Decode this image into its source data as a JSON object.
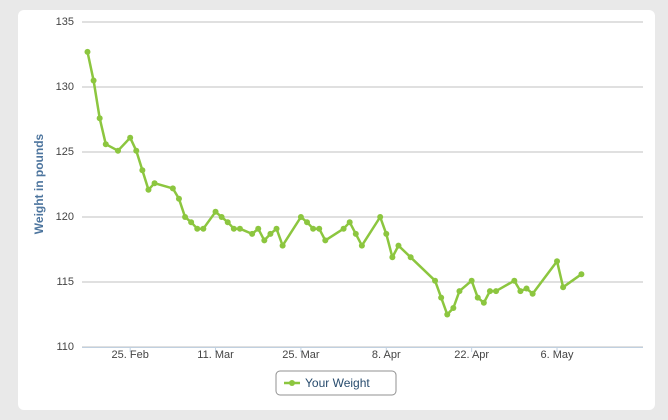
{
  "chart_data": {
    "type": "line",
    "y_label": "Weight in pounds",
    "x": [
      -7,
      -6,
      -5,
      -4,
      -2,
      0,
      1,
      2,
      3,
      4,
      7,
      8,
      9,
      10,
      11,
      12,
      14,
      15,
      16,
      17,
      18,
      20,
      21,
      22,
      23,
      24,
      25,
      28,
      29,
      30,
      31,
      32,
      35,
      36,
      37,
      38,
      41,
      42,
      43,
      44,
      46,
      50,
      51,
      52,
      53,
      54,
      56,
      57,
      58,
      59,
      60,
      63,
      64,
      65,
      66,
      70,
      71,
      74
    ],
    "series": [
      {
        "name": "Your Weight",
        "color": "#8cc63f",
        "values": [
          132.7,
          130.5,
          127.6,
          125.6,
          125.1,
          126.1,
          125.1,
          123.6,
          122.1,
          122.6,
          122.2,
          121.4,
          120.0,
          119.6,
          119.1,
          119.1,
          120.4,
          120.0,
          119.6,
          119.1,
          119.1,
          118.7,
          119.1,
          118.2,
          118.7,
          119.1,
          117.8,
          120.0,
          119.6,
          119.1,
          119.1,
          118.2,
          119.1,
          119.6,
          118.7,
          117.8,
          120.0,
          118.7,
          116.9,
          117.8,
          116.9,
          115.1,
          113.8,
          112.5,
          113.0,
          114.3,
          115.1,
          113.8,
          113.4,
          114.3,
          114.3,
          115.1,
          114.3,
          114.5,
          114.1,
          116.6,
          114.6,
          115.6
        ]
      }
    ],
    "xlim": [
      -7.9,
      84.1
    ],
    "xticks": [
      {
        "value": 0,
        "label": "25. Feb"
      },
      {
        "value": 14,
        "label": "11. Mar"
      },
      {
        "value": 28,
        "label": "25. Mar"
      },
      {
        "value": 42,
        "label": "8. Apr"
      },
      {
        "value": 56,
        "label": "22. Apr"
      },
      {
        "value": 70,
        "label": "6. May"
      }
    ],
    "ylim": [
      110,
      135
    ],
    "yticks": [
      110,
      115,
      120,
      125,
      130,
      135
    ],
    "grid": true
  }
}
